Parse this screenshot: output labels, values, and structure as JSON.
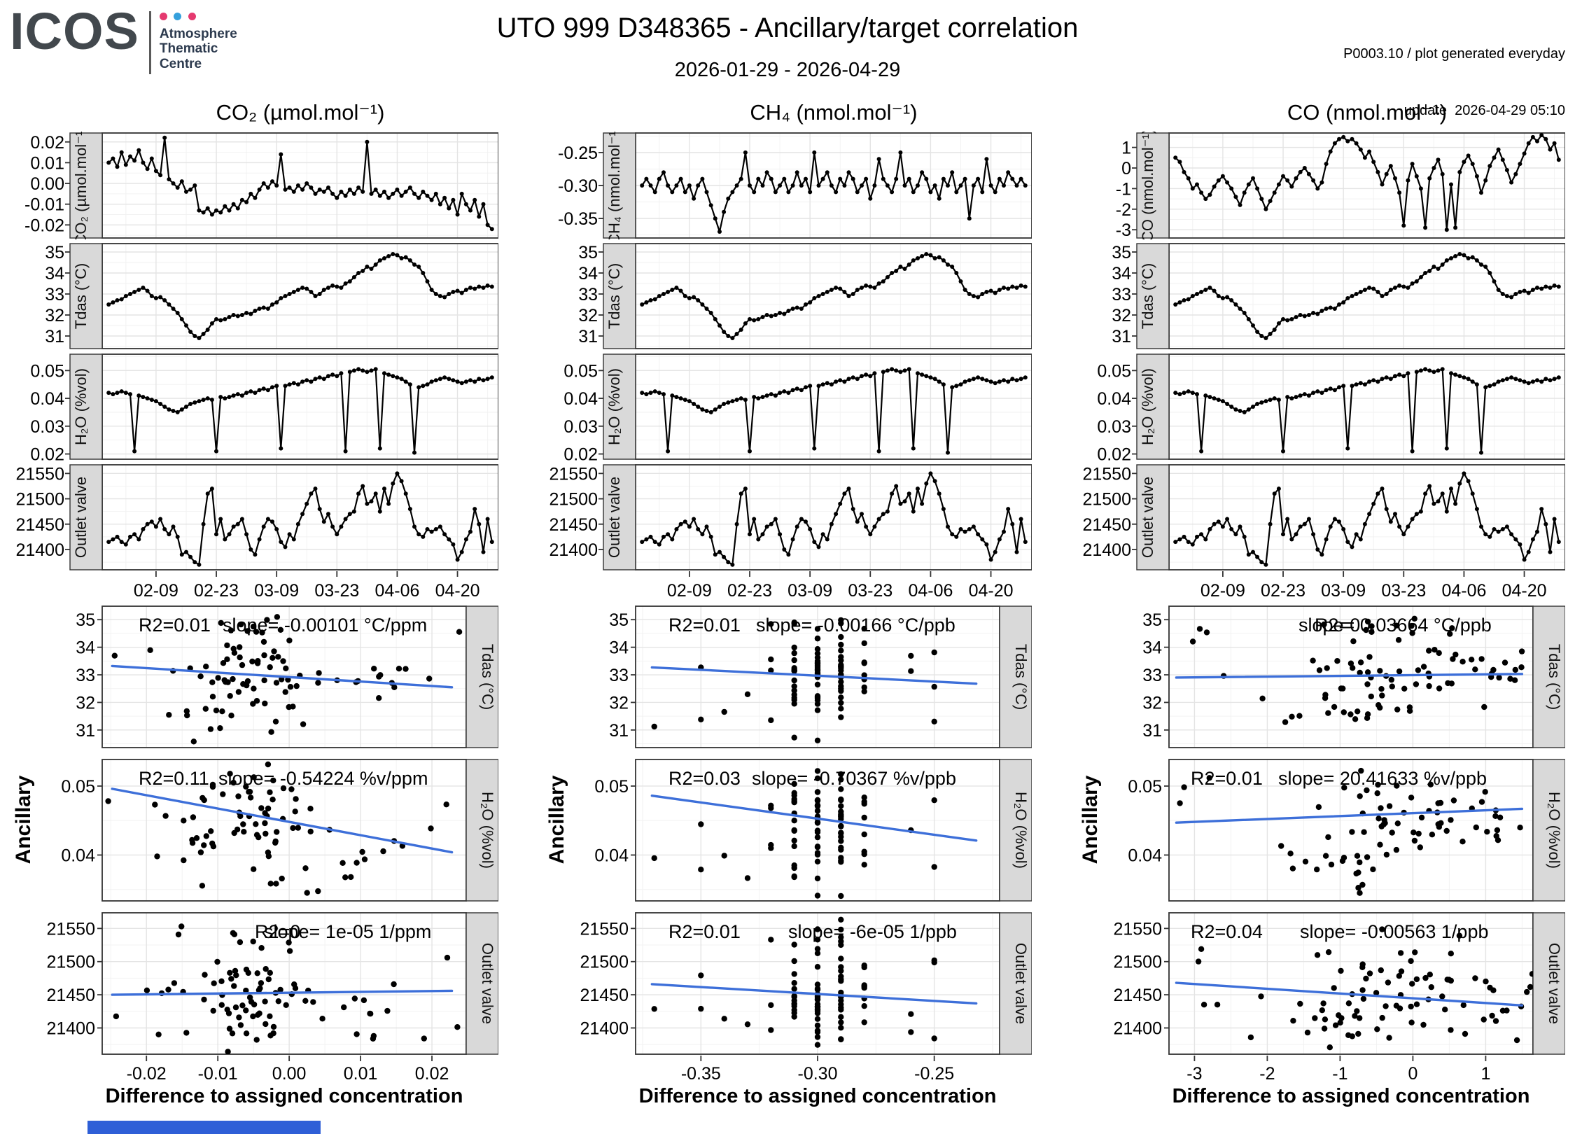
{
  "header": {
    "logo": {
      "name": "ICOS",
      "line1": "Atmosphere",
      "line2": "Thematic",
      "line3": "Centre",
      "dot_colors": [
        "#e5396f",
        "#35a0dc",
        "#e5396f"
      ]
    },
    "title": "UTO 999 D348365 - Ancillary/target correlation",
    "subtitle": "2026-01-29 - 2026-04-29",
    "meta_line1": "P0003.10 / plot generated everyday",
    "meta_line2": "update  2026-04-29 05:10"
  },
  "labels": {
    "ancillary": "Ancillary",
    "x_title": "Difference to assigned concentration"
  },
  "chart_data": {
    "type": "multi-panel",
    "time_start": "2026-01-29",
    "time_end": "2026-04-29",
    "n_points": 90,
    "colors": {
      "trend": "#3d6fd9",
      "strip_bg": "#d9d9d9",
      "grid_major": "#e4e4e4",
      "grid_minor": "#f2f2f2",
      "panel_border": "#333333",
      "line": "#000000",
      "footer_bar": "#2e5fd7"
    },
    "ts_xlim": [
      -1.5,
      90.5
    ],
    "x_ticks": {
      "days": [
        11,
        25,
        39,
        53,
        67,
        81
      ],
      "labels": [
        "02-09",
        "02-23",
        "03-09",
        "03-23",
        "04-06",
        "04-20"
      ],
      "step": 14
    },
    "anc_rows": [
      {
        "key": "tdas",
        "strip": "Tdas (°C)",
        "ts_ylim": [
          30.45,
          35.35
        ],
        "sc_ylim": [
          30.4,
          35.45
        ],
        "ticks": [
          31,
          32,
          33,
          34,
          35
        ],
        "labels": [
          "31",
          "32",
          "33",
          "34",
          "35"
        ],
        "step": 1,
        "jitter": 0.5
      },
      {
        "key": "h2o",
        "strip": "H₂O (%vol)",
        "ts_ylim": [
          0.0185,
          0.0555
        ],
        "sc_ylim": [
          0.0335,
          0.0537
        ],
        "ticks": [
          0.02,
          0.03,
          0.04,
          0.05
        ],
        "labels": [
          "0.02",
          "0.03",
          "0.04",
          "0.05"
        ],
        "sc_ticks": [
          0.04,
          0.05
        ],
        "sc_labels": [
          "0.04",
          "0.05"
        ],
        "step": 0.01,
        "jitter": 0.0035
      },
      {
        "key": "outlet",
        "strip": "Outlet valve",
        "ts_ylim": [
          21362,
          21565
        ],
        "sc_ylim": [
          21362,
          21572
        ],
        "ticks": [
          21400,
          21450,
          21500,
          21550
        ],
        "labels": [
          "21400",
          "21450",
          "21500",
          "21550"
        ],
        "step": 50,
        "jitter": 40
      }
    ],
    "columns": [
      {
        "header": "CO₂ (µmol.mol⁻¹)",
        "strip": "CO₂ (µmol.mol⁻¹)",
        "series_key": "co2_diff",
        "var": {
          "ylim": [
            -0.0258,
            0.0238
          ],
          "ticks": [
            -0.02,
            -0.01,
            0,
            0.01,
            0.02
          ],
          "labels": [
            "-0.02",
            "-0.01",
            "0.00",
            "0.01",
            "0.02"
          ],
          "step": 0.01
        },
        "sc_xlim": [
          -0.0262,
          0.0248
        ],
        "sc_xticks": [
          -0.02,
          -0.01,
          0,
          0.01,
          0.02
        ],
        "sc_xlabels": [
          "-0.02",
          "-0.01",
          "0.00",
          "0.01",
          "0.02"
        ],
        "sc_xstep": 0.01,
        "x_jitter": 0.004,
        "scatters": [
          {
            "r2": "R2=0.01",
            "slope": "slope= -0.00101 °C/ppm",
            "r2_x": 0.1,
            "slope_x": 0.33,
            "trend": {
              "x": [
                -0.0248,
                0.0228
              ],
              "y": [
                33.32,
                32.55
              ]
            }
          },
          {
            "r2": "R2=0.11",
            "slope": "slope= -0.54224 %v/ppm",
            "r2_x": 0.1,
            "slope_x": 0.32,
            "trend": {
              "x": [
                -0.0248,
                0.0228
              ],
              "y": [
                0.0496,
                0.0404
              ]
            }
          },
          {
            "r2": "R2=0",
            "slope": "slope= 1e-05 1/ppm",
            "r2_x": 0.42,
            "slope_x": 0.445,
            "trend": {
              "x": [
                -0.0248,
                0.0228
              ],
              "y": [
                21450,
                21456
              ]
            }
          }
        ]
      },
      {
        "header": "CH₄ (nmol.mol⁻¹)",
        "strip": "CH₄ (nmol.mol⁻¹)",
        "series_key": "ch4_diff",
        "var": {
          "ylim": [
            -0.378,
            -0.222
          ],
          "ticks": [
            -0.35,
            -0.3,
            -0.25
          ],
          "labels": [
            "-0.35",
            "-0.30",
            "-0.25"
          ],
          "step": 0.05
        },
        "sc_xlim": [
          -0.378,
          -0.222
        ],
        "sc_xticks": [
          -0.35,
          -0.3,
          -0.25
        ],
        "sc_xlabels": [
          "-0.35",
          "-0.30",
          "-0.25"
        ],
        "sc_xstep": 0.05,
        "x_jitter": 0,
        "scatters": [
          {
            "r2": "R2=0.01",
            "slope": "slope= -0.00166 °C/ppb",
            "r2_x": 0.09,
            "slope_x": 0.33,
            "trend": {
              "x": [
                -0.371,
                -0.232
              ],
              "y": [
                33.27,
                32.68
              ]
            }
          },
          {
            "r2": "R2=0.03",
            "slope": "slope= -0.70367 %v/ppb",
            "r2_x": 0.09,
            "slope_x": 0.32,
            "trend": {
              "x": [
                -0.371,
                -0.232
              ],
              "y": [
                0.0486,
                0.0421
              ]
            }
          },
          {
            "r2": "R2=0.01",
            "slope": "slope= -6e-05 1/ppb",
            "r2_x": 0.09,
            "slope_x": 0.42,
            "trend": {
              "x": [
                -0.371,
                -0.232
              ],
              "y": [
                21466,
                21437
              ]
            }
          }
        ]
      },
      {
        "header": "CO (nmol.mol⁻¹)",
        "strip": "CO (nmol.mol⁻¹)",
        "series_key": "co_diff",
        "var": {
          "ylim": [
            -3.35,
            1.65
          ],
          "ticks": [
            -3,
            -2,
            -1,
            0,
            1
          ],
          "labels": [
            "-3",
            "-2",
            "-1",
            "0",
            "1"
          ],
          "step": 1
        },
        "sc_xlim": [
          -3.35,
          1.65
        ],
        "sc_xticks": [
          -3,
          -2,
          -1,
          0,
          1
        ],
        "sc_xlabels": [
          "-3",
          "-2",
          "-1",
          "0",
          "1"
        ],
        "sc_xstep": 1,
        "x_jitter": 0.3,
        "scatters": [
          {
            "r2": "R2=0",
            "slope": "slope= 0.03664 °C/ppb",
            "r2_x": 0.4,
            "slope_x": 0.355,
            "trend": {
              "x": [
                -3.25,
                1.5
              ],
              "y": [
                32.9,
                33.03
              ]
            }
          },
          {
            "r2": "R2=0.01",
            "slope": "slope= 20.41633 %v/ppb",
            "r2_x": 0.06,
            "slope_x": 0.3,
            "trend": {
              "x": [
                -3.25,
                1.5
              ],
              "y": [
                0.0447,
                0.0467
              ]
            }
          },
          {
            "r2": "R2=0.04",
            "slope": "slope= -0.00563 1/ppb",
            "r2_x": 0.06,
            "slope_x": 0.36,
            "trend": {
              "x": [
                -3.25,
                1.5
              ],
              "y": [
                21468,
                21434
              ]
            }
          }
        ]
      }
    ],
    "series": {
      "co2_diff": {
        "name": "CO2 difference to assigned concentration",
        "unit": "µmol.mol⁻¹",
        "values": [
          0.01,
          0.012,
          0.008,
          0.015,
          0.009,
          0.013,
          0.011,
          0.016,
          0.01,
          0.007,
          0.012,
          0.006,
          0.004,
          0.022,
          0.002,
          0,
          -0.002,
          0.001,
          -0.004,
          -0.003,
          -0.001,
          -0.013,
          -0.014,
          -0.012,
          -0.015,
          -0.013,
          -0.014,
          -0.011,
          -0.013,
          -0.01,
          -0.012,
          -0.008,
          -0.009,
          -0.005,
          -0.007,
          -0.003,
          0,
          -0.002,
          0.001,
          -0.001,
          0.014,
          -0.003,
          -0.002,
          -0.004,
          -0.001,
          -0.003,
          0,
          -0.002,
          -0.005,
          -0.003,
          -0.004,
          -0.002,
          -0.005,
          -0.007,
          -0.004,
          -0.006,
          -0.003,
          -0.005,
          -0.002,
          -0.004,
          0.02,
          -0.005,
          -0.003,
          -0.006,
          -0.004,
          -0.007,
          -0.005,
          -0.003,
          -0.006,
          -0.004,
          -0.002,
          -0.005,
          -0.007,
          -0.004,
          -0.006,
          -0.008,
          -0.005,
          -0.01,
          -0.007,
          -0.012,
          -0.008,
          -0.015,
          -0.005,
          -0.01,
          -0.013,
          -0.008,
          -0.016,
          -0.01,
          -0.02,
          -0.022
        ]
      },
      "ch4_diff": {
        "name": "CH4 difference to assigned concentration",
        "unit": "nmol.mol⁻¹",
        "values": [
          -0.3,
          -0.29,
          -0.3,
          -0.31,
          -0.29,
          -0.28,
          -0.3,
          -0.31,
          -0.3,
          -0.29,
          -0.31,
          -0.3,
          -0.32,
          -0.3,
          -0.29,
          -0.31,
          -0.33,
          -0.35,
          -0.37,
          -0.34,
          -0.32,
          -0.31,
          -0.3,
          -0.29,
          -0.25,
          -0.3,
          -0.31,
          -0.29,
          -0.3,
          -0.28,
          -0.29,
          -0.31,
          -0.3,
          -0.29,
          -0.31,
          -0.3,
          -0.28,
          -0.3,
          -0.29,
          -0.31,
          -0.25,
          -0.3,
          -0.29,
          -0.28,
          -0.3,
          -0.31,
          -0.29,
          -0.3,
          -0.28,
          -0.29,
          -0.31,
          -0.3,
          -0.29,
          -0.32,
          -0.3,
          -0.26,
          -0.29,
          -0.3,
          -0.31,
          -0.29,
          -0.25,
          -0.3,
          -0.29,
          -0.31,
          -0.3,
          -0.28,
          -0.29,
          -0.31,
          -0.3,
          -0.32,
          -0.29,
          -0.3,
          -0.28,
          -0.31,
          -0.3,
          -0.29,
          -0.35,
          -0.3,
          -0.29,
          -0.31,
          -0.26,
          -0.3,
          -0.31,
          -0.29,
          -0.3,
          -0.28,
          -0.29,
          -0.3,
          -0.29,
          -0.3
        ]
      },
      "co_diff": {
        "name": "CO difference to assigned concentration",
        "unit": "nmol.mol⁻¹",
        "values": [
          0.5,
          0.3,
          -0.2,
          -0.5,
          -1,
          -0.8,
          -1.2,
          -1.5,
          -1.3,
          -0.9,
          -0.6,
          -0.4,
          -0.7,
          -1,
          -1.4,
          -1.8,
          -1.2,
          -0.8,
          -0.5,
          -1,
          -1.5,
          -2,
          -1.6,
          -1.2,
          -0.8,
          -0.4,
          -0.6,
          -0.9,
          -0.5,
          -0.2,
          0,
          -0.3,
          -0.6,
          -1,
          -0.7,
          0.2,
          0.8,
          1.2,
          1.4,
          1.5,
          1.3,
          1.4,
          1.2,
          0.9,
          0.5,
          0.8,
          0.3,
          -0.2,
          -0.8,
          -0.3,
          0.1,
          -0.5,
          -1.2,
          -2.8,
          -0.6,
          0.2,
          -0.4,
          -1,
          -2.9,
          -0.5,
          0,
          0.4,
          -0.3,
          -3,
          -0.8,
          -2.9,
          -0.2,
          0.3,
          0.6,
          0.2,
          -0.4,
          -1.2,
          -0.6,
          0.1,
          0.5,
          0.9,
          0.4,
          -0.1,
          -0.7,
          -0.3,
          0.2,
          0.7,
          1.2,
          1.5,
          1.3,
          1.6,
          1.4,
          0.9,
          1.2,
          0.4
        ]
      },
      "tdas": {
        "name": "Tdas",
        "unit": "°C",
        "values": [
          32.5,
          32.6,
          32.7,
          32.75,
          32.9,
          33,
          33.1,
          33.2,
          33.3,
          33.15,
          32.9,
          32.8,
          32.85,
          32.7,
          32.5,
          32.3,
          32.1,
          31.8,
          31.5,
          31.2,
          31,
          30.9,
          31.1,
          31.3,
          31.6,
          31.8,
          31.75,
          31.8,
          31.9,
          32,
          31.95,
          32,
          32.1,
          32.05,
          32.2,
          32.3,
          32.35,
          32.3,
          32.5,
          32.6,
          32.8,
          32.9,
          33,
          33.1,
          33.2,
          33.3,
          33.25,
          33.1,
          32.9,
          33,
          33.2,
          33.3,
          33.4,
          33.35,
          33.3,
          33.5,
          33.6,
          33.8,
          34,
          34.1,
          34.3,
          34.2,
          34.4,
          34.6,
          34.7,
          34.8,
          34.9,
          34.85,
          34.7,
          34.75,
          34.6,
          34.4,
          34.3,
          34,
          33.6,
          33.2,
          33,
          32.9,
          32.85,
          33,
          33.1,
          33.15,
          33.05,
          33.2,
          33.3,
          33.25,
          33.35,
          33.3,
          33.4,
          33.35
        ]
      },
      "h2o": {
        "name": "H2O",
        "unit": "%vol",
        "values": [
          0.042,
          0.0415,
          0.042,
          0.0425,
          0.042,
          0.0415,
          0.021,
          0.041,
          0.0405,
          0.04,
          0.0395,
          0.039,
          0.038,
          0.037,
          0.036,
          0.0355,
          0.035,
          0.036,
          0.037,
          0.038,
          0.0385,
          0.039,
          0.0395,
          0.04,
          0.0395,
          0.021,
          0.0405,
          0.04,
          0.0405,
          0.041,
          0.0415,
          0.041,
          0.042,
          0.0425,
          0.042,
          0.043,
          0.0435,
          0.043,
          0.044,
          0.0445,
          0.022,
          0.0445,
          0.045,
          0.0455,
          0.045,
          0.046,
          0.0465,
          0.046,
          0.047,
          0.0475,
          0.047,
          0.048,
          0.0485,
          0.048,
          0.049,
          0.021,
          0.0495,
          0.05,
          0.0505,
          0.05,
          0.0495,
          0.05,
          0.0505,
          0.022,
          0.049,
          0.0485,
          0.048,
          0.0475,
          0.047,
          0.046,
          0.045,
          0.0205,
          0.044,
          0.0445,
          0.045,
          0.046,
          0.0465,
          0.047,
          0.0475,
          0.047,
          0.0465,
          0.046,
          0.0455,
          0.046,
          0.0465,
          0.046,
          0.047,
          0.0465,
          0.047,
          0.0475
        ]
      },
      "outlet": {
        "name": "Outlet valve",
        "unit": "",
        "values": [
          21415,
          21420,
          21425,
          21415,
          21410,
          21425,
          21430,
          21420,
          21440,
          21450,
          21455,
          21445,
          21460,
          21440,
          21430,
          21445,
          21425,
          21390,
          21395,
          21385,
          21375,
          21370,
          21450,
          21510,
          21520,
          21430,
          21460,
          21420,
          21430,
          21445,
          21450,
          21460,
          21430,
          21400,
          21390,
          21420,
          21445,
          21460,
          21455,
          21440,
          21415,
          21405,
          21430,
          21420,
          21450,
          21470,
          21490,
          21510,
          21520,
          21480,
          21455,
          21470,
          21445,
          21430,
          21445,
          21460,
          21470,
          21475,
          21510,
          21525,
          21490,
          21495,
          21510,
          21475,
          21520,
          21490,
          21530,
          21550,
          21535,
          21510,
          21480,
          21445,
          21430,
          21425,
          21440,
          21435,
          21440,
          21445,
          21430,
          21420,
          21410,
          21380,
          21395,
          21420,
          21435,
          21480,
          21450,
          21395,
          21460,
          21415
        ]
      }
    }
  }
}
